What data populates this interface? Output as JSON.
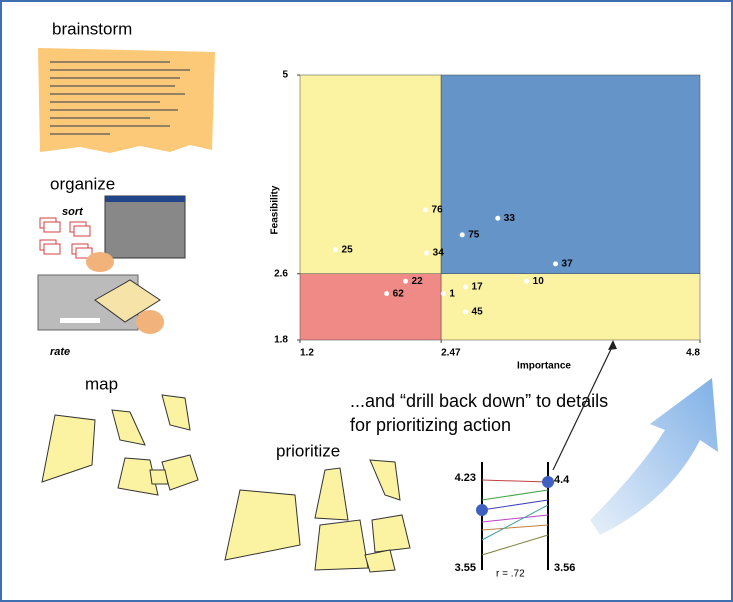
{
  "slide": {
    "steps": {
      "brainstorm": "brainstorm",
      "organize": "organize",
      "sort": "sort",
      "rate": "rate",
      "map": "map",
      "prioritize": "prioritize"
    },
    "callout": [
      "...and “drill back down” to details",
      "for prioritizing action"
    ],
    "ladder": {
      "left_top": "4.23",
      "left_bottom": "3.55",
      "right_top": "4.4",
      "right_bottom": "3.56",
      "r": "r = .72"
    }
  },
  "chart_data": {
    "type": "scatter",
    "xlabel": "Importance",
    "ylabel": "Feasibility",
    "xlim": [
      1.2,
      4.8
    ],
    "ylim": [
      1.8,
      5
    ],
    "xticks": [
      1.2,
      2.47,
      4.8
    ],
    "yticks": [
      1.8,
      2.6,
      5
    ],
    "point_labels": [
      "76",
      "25",
      "34",
      "75",
      "33",
      "37",
      "22",
      "62",
      "1",
      "17",
      "10",
      "45"
    ],
    "x": [
      2.33,
      1.52,
      2.34,
      2.66,
      2.98,
      3.5,
      2.15,
      1.98,
      2.49,
      2.69,
      3.24,
      2.69
    ],
    "values": [
      3.37,
      2.89,
      2.85,
      3.07,
      3.27,
      2.72,
      2.51,
      2.36,
      2.36,
      2.44,
      2.51,
      2.14
    ],
    "color": "#ffffff",
    "quadrant_colors": {
      "top_left": "#fbf3a2",
      "top_right": "#6595c8",
      "bottom_left": "#f08a86",
      "bottom_right": "#fbf3a2"
    }
  }
}
